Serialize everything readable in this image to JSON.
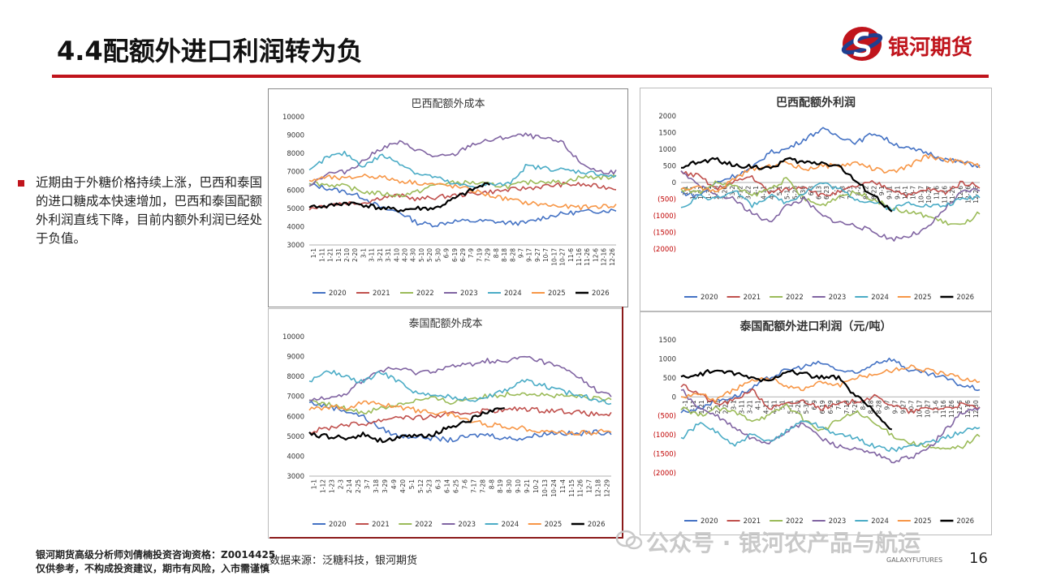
{
  "header": {
    "title": "4.4配额外进口利润转为负"
  },
  "logo": {
    "text": "银河期货"
  },
  "bullet": {
    "text": "近期由于外糖价格持续上涨，巴西和泰国的进口糖成本快速增加，巴西和泰国配额外利润直线下降，目前内额外利润已经处于负值。"
  },
  "footer": {
    "line1": "银河期货高级分析师刘倩楠投资咨询资格：Z0014425",
    "line2": "仅供参考，不构成投资建议，期市有风险，入市需谨慎",
    "source": "数据来源：泛糖科技，银河期货",
    "watermark": "公众号 · 银河农产品与航运",
    "galaxy": "GALAXYFUTURES",
    "page": "16"
  },
  "colors": {
    "2020": "#4472c4",
    "2021": "#c0504d",
    "2022": "#9bbb59",
    "2023": "#8064a2",
    "2024": "#4bacc6",
    "2025": "#f79646",
    "2026": "#000000",
    "accent": "#c0141c"
  },
  "chart_data": [
    {
      "type": "line",
      "title": "巴西配额外成本",
      "ylim": [
        3000,
        10000
      ],
      "yticks": [
        "10000",
        "9000",
        "8000",
        "7000",
        "6000",
        "5000",
        "4000",
        "3000"
      ],
      "xticks": [
        "1-1",
        "1-11",
        "1-21",
        "1-31",
        "2-10",
        "2-20",
        "3-1",
        "3-11",
        "3-21",
        "3-31",
        "4-10",
        "4-20",
        "4-30",
        "5-10",
        "5-20",
        "5-30",
        "6-9",
        "6-19",
        "6-29",
        "7-9",
        "7-19",
        "7-29",
        "8-8",
        "8-18",
        "8-28",
        "9-7",
        "9-17",
        "9-27",
        "10-7",
        "10-17",
        "10-27",
        "11-6",
        "11-16",
        "11-26",
        "12-6",
        "12-16",
        "12-26"
      ],
      "series": [
        {
          "name": "2020",
          "values": [
            6300,
            6100,
            5900,
            5600,
            5000,
            4800,
            4200,
            4100,
            4300,
            4300,
            4300,
            4200,
            4200,
            4500,
            4700,
            4800,
            4850,
            4900
          ]
        },
        {
          "name": "2021",
          "values": [
            5000,
            5200,
            5300,
            5300,
            5600,
            5700,
            5500,
            5600,
            5700,
            5800,
            5900,
            6000,
            6100,
            6200,
            6300,
            6300,
            6200,
            6100
          ]
        },
        {
          "name": "2022",
          "values": [
            6400,
            6300,
            6200,
            5900,
            5800,
            5700,
            5900,
            6300,
            6400,
            6400,
            6300,
            6200,
            6400,
            6500,
            6400,
            6700,
            6700,
            6700
          ]
        },
        {
          "name": "2023",
          "values": [
            6300,
            6900,
            7000,
            7600,
            8300,
            8600,
            8200,
            7800,
            7900,
            8500,
            8700,
            8900,
            9000,
            8800,
            8600,
            7500,
            7000,
            7000
          ]
        },
        {
          "name": "2024",
          "values": [
            7000,
            7800,
            8000,
            7300,
            7900,
            7500,
            6900,
            6700,
            6300,
            6200,
            6300,
            6300,
            7300,
            7200,
            7100,
            7000,
            6900,
            6700
          ]
        },
        {
          "name": "2025",
          "values": [
            6500,
            6700,
            6600,
            6800,
            6700,
            6500,
            6400,
            6300,
            6200,
            6000,
            5700,
            5500,
            5300,
            5200,
            5100,
            5050,
            5100,
            5150
          ]
        },
        {
          "name": "2026",
          "values": [
            5100,
            5100,
            5300,
            5200,
            5000,
            4900,
            5000,
            5000,
            5500,
            6000,
            6400
          ]
        }
      ],
      "legend": [
        "2020",
        "2021",
        "2022",
        "2023",
        "2024",
        "2025",
        "2026"
      ]
    },
    {
      "type": "line",
      "title": "巴西配额外利润",
      "ylim": [
        -2000,
        2000
      ],
      "yticks": [
        "2000",
        "1500",
        "1000",
        "500",
        "0",
        "(500)",
        "(1000)",
        "(1500)",
        "(2000)"
      ],
      "xticks": [
        "1-1",
        "1-11",
        "1-21",
        "1-31",
        "2-10",
        "2-20",
        "3-2",
        "3-12",
        "3-22",
        "4-1",
        "4-11",
        "4-21",
        "5-1",
        "5-11",
        "5-20",
        "5-30",
        "6-3",
        "6-13",
        "6-23",
        "7-3",
        "7-13",
        "7-23",
        "8-2",
        "8-12",
        "8-22",
        "9-1",
        "9-11",
        "9-21",
        "10-1",
        "10-7",
        "10-17",
        "10-27",
        "11-6",
        "11-16",
        "11-26",
        "12-6",
        "12-16",
        "12-26"
      ],
      "series": [
        {
          "name": "2020",
          "values": [
            -300,
            -400,
            0,
            200,
            400,
            900,
            1000,
            1300,
            1600,
            1400,
            1200,
            1500,
            1200,
            1000,
            900,
            700,
            600,
            500
          ]
        },
        {
          "name": "2021",
          "values": [
            300,
            200,
            -200,
            0,
            200,
            -300,
            -200,
            -100,
            -400,
            -300,
            -100,
            0,
            -200,
            -400,
            -200,
            -300,
            0,
            -100
          ]
        },
        {
          "name": "2022",
          "values": [
            -200,
            -300,
            0,
            -100,
            -400,
            -200,
            100,
            -500,
            -700,
            -400,
            -300,
            -500,
            -800,
            -900,
            -1000,
            -1200,
            -1300,
            -900
          ]
        },
        {
          "name": "2023",
          "values": [
            300,
            -100,
            -400,
            -500,
            -900,
            -1200,
            -700,
            -500,
            -1000,
            -1200,
            -1300,
            -1500,
            -1700,
            -1600,
            -1400,
            -800,
            -300,
            -200
          ]
        },
        {
          "name": "2024",
          "values": [
            -800,
            -400,
            -500,
            -200,
            -700,
            -400,
            -600,
            -300,
            0,
            -200,
            -500,
            -600,
            -800,
            -600,
            -700,
            -700,
            -500,
            -400
          ]
        },
        {
          "name": "2025",
          "values": [
            -200,
            -100,
            -300,
            100,
            400,
            500,
            600,
            400,
            500,
            500,
            600,
            400,
            300,
            500,
            800,
            700,
            600,
            500
          ]
        },
        {
          "name": "2026",
          "values": [
            500,
            600,
            700,
            500,
            500,
            400,
            700,
            600,
            600,
            500,
            0,
            -400,
            -900
          ]
        }
      ],
      "legend": [
        "2020",
        "2021",
        "2022",
        "2023",
        "2024",
        "2025",
        "2026"
      ]
    },
    {
      "type": "line",
      "title": "泰国配额外成本",
      "ylim": [
        3000,
        10000
      ],
      "yticks": [
        "10000",
        "9000",
        "8000",
        "7000",
        "6000",
        "5000",
        "4000",
        "3000"
      ],
      "xticks": [
        "1-1",
        "1-12",
        "1-23",
        "2-3",
        "2-14",
        "2-25",
        "3-7",
        "3-18",
        "3-29",
        "4-9",
        "4-20",
        "5-1",
        "5-12",
        "5-23",
        "6-3",
        "6-14",
        "6-25",
        "7-6",
        "7-17",
        "7-28",
        "8-8",
        "8-19",
        "8-30",
        "9-10",
        "9-21",
        "10-2",
        "10-13",
        "10-24",
        "11-4",
        "11-15",
        "11-26",
        "12-7",
        "12-18",
        "12-29"
      ],
      "series": [
        {
          "name": "2020",
          "values": [
            6700,
            6500,
            6300,
            6000,
            5400,
            5000,
            5000,
            4900,
            4800,
            5000,
            5100,
            4900,
            4900,
            5100,
            5200,
            5100,
            5200,
            5200
          ]
        },
        {
          "name": "2021",
          "values": [
            5200,
            5400,
            5600,
            5600,
            5800,
            6000,
            5900,
            6000,
            6100,
            6200,
            6300,
            6300,
            6400,
            6300,
            6300,
            6200,
            6100,
            6100
          ]
        },
        {
          "name": "2022",
          "values": [
            6700,
            6600,
            6400,
            6200,
            6400,
            6600,
            6800,
            6900,
            6700,
            6900,
            7000,
            7100,
            7200,
            7100,
            7000,
            7000,
            6900,
            6800
          ]
        },
        {
          "name": "2023",
          "values": [
            6800,
            7000,
            7100,
            7800,
            8300,
            8400,
            8200,
            8300,
            8500,
            8600,
            8800,
            8700,
            9000,
            8800,
            8500,
            8100,
            7400,
            7000
          ]
        },
        {
          "name": "2024",
          "values": [
            7700,
            8300,
            8000,
            7700,
            8200,
            7800,
            7200,
            7000,
            7000,
            6800,
            7000,
            7300,
            7800,
            7600,
            7300,
            7100,
            6900,
            6700
          ]
        },
        {
          "name": "2025",
          "values": [
            6300,
            6500,
            6400,
            6700,
            6600,
            6500,
            6300,
            6200,
            6100,
            5800,
            5600,
            5500,
            5400,
            5300,
            5200,
            5150,
            5200,
            5250
          ]
        },
        {
          "name": "2026",
          "values": [
            5100,
            5000,
            4900,
            5100,
            4800,
            4900,
            5000,
            5100,
            5500,
            5800,
            6200,
            6400
          ]
        }
      ],
      "legend": [
        "2020",
        "2021",
        "2022",
        "2023",
        "2024",
        "2025",
        "2026"
      ]
    },
    {
      "type": "line",
      "title": "泰国配额外进口利润（元/吨）",
      "ylim": [
        -2000,
        1500
      ],
      "yticks": [
        "1500",
        "1000",
        "500",
        "0",
        "(500)",
        "(1000)",
        "(1500)",
        "(2000)"
      ],
      "xticks": [
        "1-1",
        "1-11",
        "1-21",
        "2-1",
        "2-11",
        "2-21",
        "3-1",
        "3-11",
        "3-21",
        "4-1",
        "4-11",
        "4-21",
        "5-1",
        "5-11",
        "5-20",
        "5-30",
        "6-9",
        "6-19",
        "6-29",
        "7-9",
        "7-19",
        "7-29",
        "8-8",
        "8-18",
        "8-28",
        "9-7",
        "9-17",
        "9-27",
        "10-7",
        "10-17",
        "10-27",
        "11-6",
        "11-16",
        "11-26",
        "12-6",
        "12-16",
        "12-30"
      ],
      "series": [
        {
          "name": "2020",
          "values": [
            -400,
            -300,
            -100,
            0,
            200,
            500,
            700,
            800,
            900,
            700,
            600,
            900,
            1000,
            700,
            600,
            500,
            300,
            200
          ]
        },
        {
          "name": "2021",
          "values": [
            300,
            100,
            -200,
            -100,
            200,
            -300,
            -200,
            -100,
            -300,
            -200,
            -100,
            0,
            -200,
            -400,
            -300,
            -300,
            -200,
            -300
          ]
        },
        {
          "name": "2022",
          "values": [
            -300,
            -500,
            -300,
            -400,
            -600,
            -500,
            -200,
            -600,
            -900,
            -600,
            -400,
            -700,
            -1000,
            -1200,
            -1300,
            -1400,
            -1300,
            -1000
          ]
        },
        {
          "name": "2023",
          "values": [
            200,
            -300,
            -500,
            -800,
            -1100,
            -1200,
            -900,
            -700,
            -1100,
            -1300,
            -1400,
            -1500,
            -1700,
            -1600,
            -1400,
            -900,
            -400,
            -300
          ]
        },
        {
          "name": "2024",
          "values": [
            -1100,
            -700,
            -900,
            -1300,
            -1000,
            -1200,
            -900,
            -600,
            -800,
            -1000,
            -1100,
            -1300,
            -1400,
            -1300,
            -1200,
            -1100,
            -900,
            -800
          ]
        },
        {
          "name": "2025",
          "values": [
            0,
            100,
            -100,
            200,
            400,
            500,
            300,
            200,
            400,
            300,
            500,
            600,
            700,
            800,
            700,
            600,
            500,
            400
          ]
        },
        {
          "name": "2026",
          "values": [
            500,
            600,
            700,
            600,
            500,
            400,
            700,
            600,
            500,
            500,
            0,
            -400,
            -900
          ]
        }
      ],
      "legend": [
        "2020",
        "2021",
        "2022",
        "2023",
        "2024",
        "2025",
        "2026"
      ]
    }
  ]
}
